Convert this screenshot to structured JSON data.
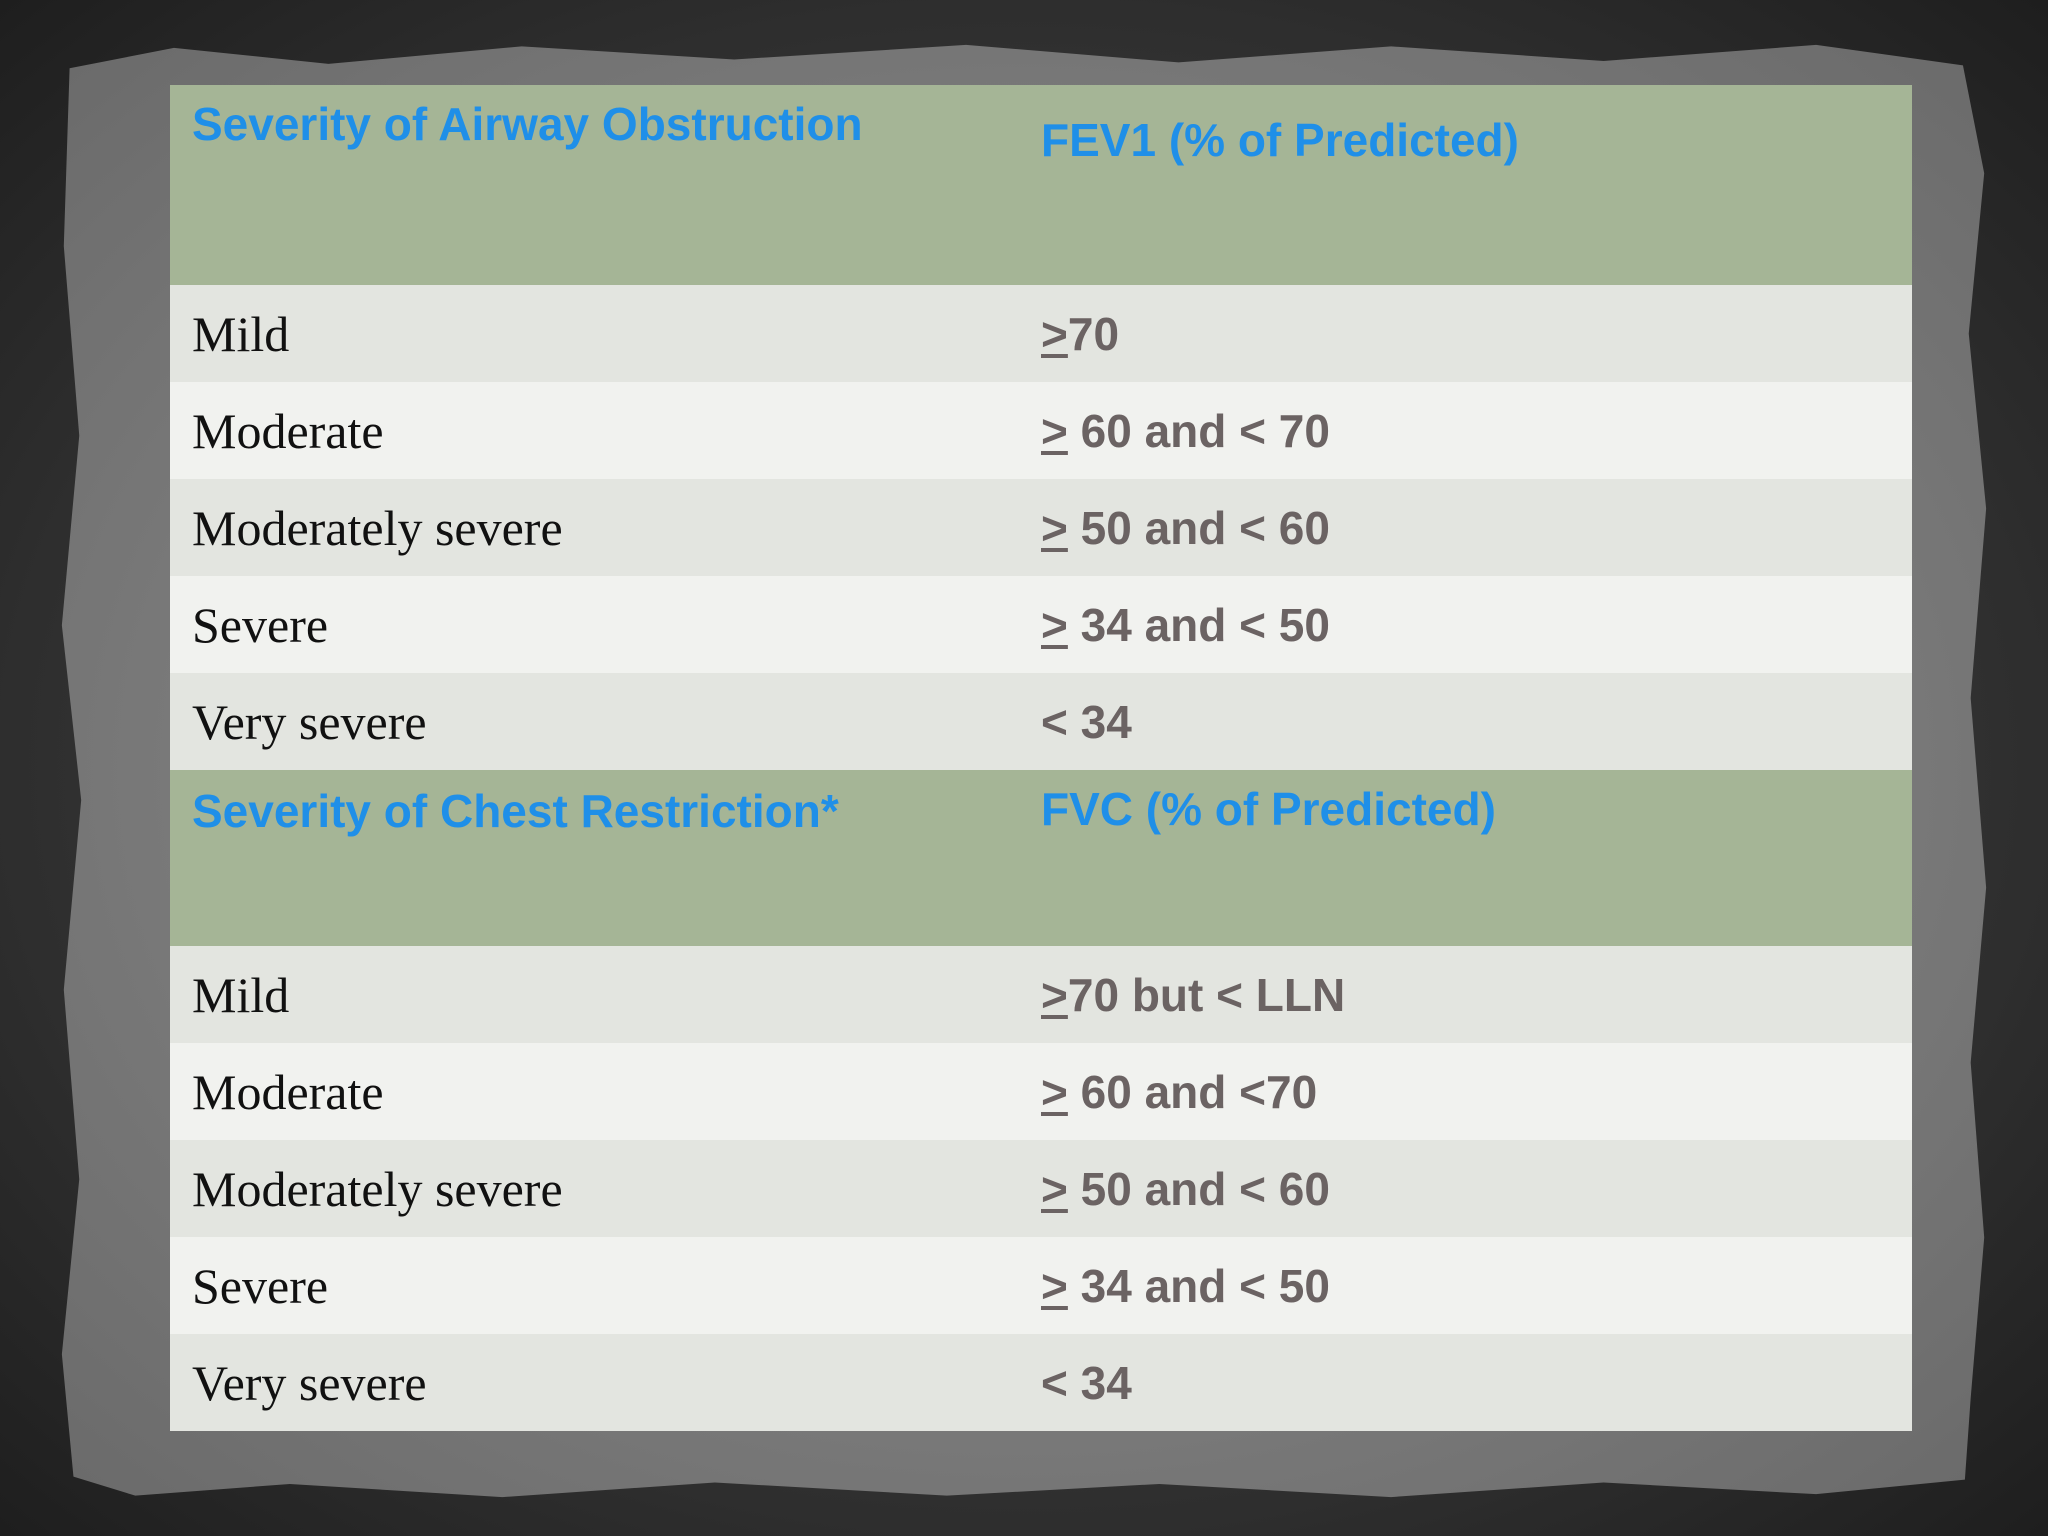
{
  "airway": {
    "header": {
      "col1": "Severity of Airway Obstruction",
      "col2": "FEV1 (% of Predicted)"
    },
    "rows": [
      {
        "severity": "Mild",
        "prefix": ">",
        "value": "70"
      },
      {
        "severity": "Moderate",
        "prefix": ">",
        "value": " 60 and < 70"
      },
      {
        "severity": "Moderately severe",
        "prefix": ">",
        "value": " 50 and < 60"
      },
      {
        "severity": "Severe",
        "prefix": ">",
        "value": " 34 and < 50"
      },
      {
        "severity": "Very severe",
        "prefix": "",
        "value": "< 34"
      }
    ]
  },
  "restriction": {
    "header": {
      "col1": "Severity of Chest Restriction*",
      "col2": "FVC (% of Predicted)"
    },
    "rows": [
      {
        "severity": "Mild",
        "prefix": ">",
        "value": "70 but < LLN"
      },
      {
        "severity": "Moderate",
        "prefix": ">",
        "value": " 60 and <70"
      },
      {
        "severity": "Moderately severe",
        "prefix": ">",
        "value": " 50 and < 60"
      },
      {
        "severity": "Severe",
        "prefix": ">",
        "value": " 34 and < 50"
      },
      {
        "severity": "Very severe",
        "prefix": "",
        "value": "< 34"
      }
    ]
  }
}
